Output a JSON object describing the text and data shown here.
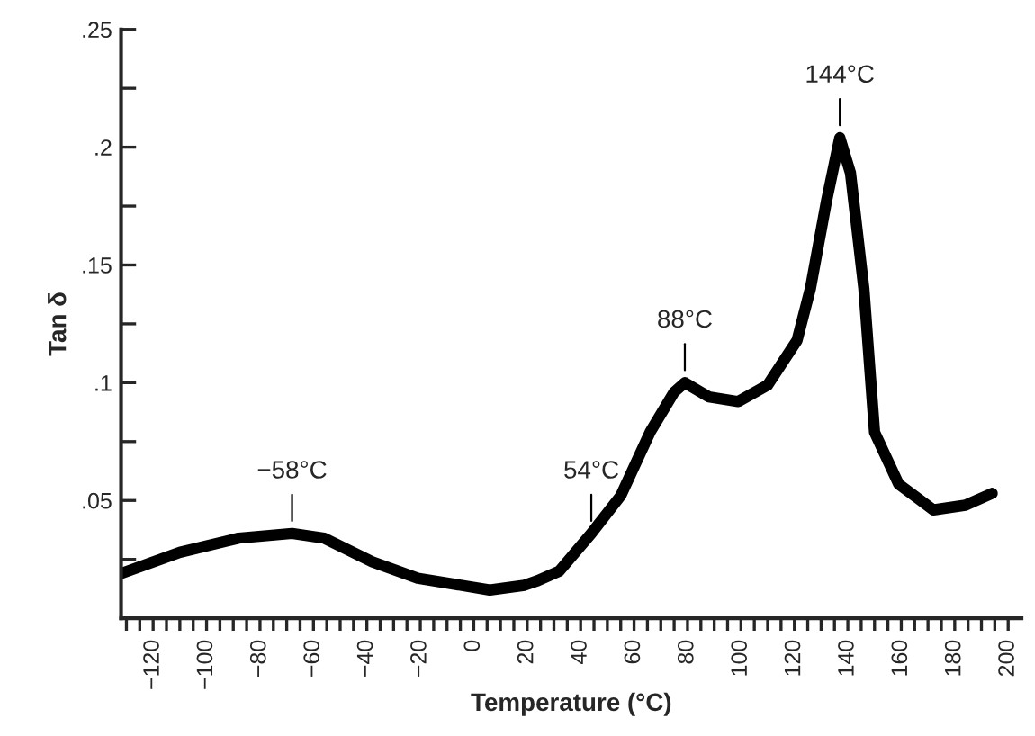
{
  "chart_data": {
    "type": "line",
    "xlabel": "Temperature (°C)",
    "ylabel": "Tan δ",
    "xlim": [
      -132,
      205
    ],
    "ylim": [
      0,
      0.25
    ],
    "xticks": [
      {
        "value": -130,
        "label": null
      },
      {
        "value": -125,
        "label": null
      },
      {
        "value": -120,
        "label": "−120"
      },
      {
        "value": -115,
        "label": null
      },
      {
        "value": -110,
        "label": null
      },
      {
        "value": -105,
        "label": null
      },
      {
        "value": -100,
        "label": "−100"
      },
      {
        "value": -95,
        "label": null
      },
      {
        "value": -90,
        "label": null
      },
      {
        "value": -85,
        "label": null
      },
      {
        "value": -80,
        "label": "−80"
      },
      {
        "value": -75,
        "label": null
      },
      {
        "value": -70,
        "label": null
      },
      {
        "value": -65,
        "label": null
      },
      {
        "value": -60,
        "label": "−60"
      },
      {
        "value": -55,
        "label": null
      },
      {
        "value": -50,
        "label": null
      },
      {
        "value": -45,
        "label": null
      },
      {
        "value": -40,
        "label": "−40"
      },
      {
        "value": -35,
        "label": null
      },
      {
        "value": -30,
        "label": null
      },
      {
        "value": -25,
        "label": null
      },
      {
        "value": -20,
        "label": "−20"
      },
      {
        "value": -15,
        "label": null
      },
      {
        "value": -10,
        "label": null
      },
      {
        "value": -5,
        "label": null
      },
      {
        "value": 0,
        "label": "0"
      },
      {
        "value": 5,
        "label": null
      },
      {
        "value": 10,
        "label": null
      },
      {
        "value": 15,
        "label": null
      },
      {
        "value": 20,
        "label": "20"
      },
      {
        "value": 25,
        "label": null
      },
      {
        "value": 30,
        "label": null
      },
      {
        "value": 35,
        "label": null
      },
      {
        "value": 40,
        "label": "40"
      },
      {
        "value": 45,
        "label": null
      },
      {
        "value": 50,
        "label": null
      },
      {
        "value": 55,
        "label": null
      },
      {
        "value": 60,
        "label": "60"
      },
      {
        "value": 65,
        "label": null
      },
      {
        "value": 70,
        "label": null
      },
      {
        "value": 75,
        "label": null
      },
      {
        "value": 80,
        "label": "80"
      },
      {
        "value": 85,
        "label": null
      },
      {
        "value": 90,
        "label": null
      },
      {
        "value": 95,
        "label": null
      },
      {
        "value": 100,
        "label": "100"
      },
      {
        "value": 105,
        "label": null
      },
      {
        "value": 110,
        "label": null
      },
      {
        "value": 115,
        "label": null
      },
      {
        "value": 120,
        "label": "120"
      },
      {
        "value": 125,
        "label": null
      },
      {
        "value": 130,
        "label": null
      },
      {
        "value": 135,
        "label": null
      },
      {
        "value": 140,
        "label": "140"
      },
      {
        "value": 145,
        "label": null
      },
      {
        "value": 150,
        "label": null
      },
      {
        "value": 155,
        "label": null
      },
      {
        "value": 160,
        "label": "160"
      },
      {
        "value": 165,
        "label": null
      },
      {
        "value": 170,
        "label": null
      },
      {
        "value": 175,
        "label": null
      },
      {
        "value": 180,
        "label": "180"
      },
      {
        "value": 185,
        "label": null
      },
      {
        "value": 190,
        "label": null
      },
      {
        "value": 195,
        "label": null
      },
      {
        "value": 200,
        "label": "200"
      }
    ],
    "yticks": [
      {
        "value": 0.025,
        "label": null
      },
      {
        "value": 0.05,
        "label": ".05"
      },
      {
        "value": 0.075,
        "label": null
      },
      {
        "value": 0.1,
        "label": ".1"
      },
      {
        "value": 0.125,
        "label": null
      },
      {
        "value": 0.15,
        "label": ".15"
      },
      {
        "value": 0.175,
        "label": null
      },
      {
        "value": 0.2,
        "label": ".2"
      },
      {
        "value": 0.225,
        "label": null
      },
      {
        "value": 0.25,
        "label": ".25"
      }
    ],
    "grid": false,
    "legend": false,
    "marker": "none",
    "line_style": "solid",
    "series": [
      {
        "color": "#000000",
        "x": [
          -132,
          -110,
          -88,
          -68,
          -56,
          -38,
          -21,
          6,
          19,
          24,
          32,
          44,
          55,
          66,
          75,
          79,
          88,
          99,
          110,
          121,
          126,
          132,
          137,
          141,
          146,
          150,
          159,
          172,
          184,
          194
        ],
        "values": [
          0.019,
          0.028,
          0.034,
          0.036,
          0.034,
          0.024,
          0.017,
          0.012,
          0.014,
          0.016,
          0.02,
          0.036,
          0.052,
          0.079,
          0.096,
          0.1,
          0.094,
          0.092,
          0.099,
          0.118,
          0.14,
          0.177,
          0.204,
          0.189,
          0.14,
          0.079,
          0.057,
          0.046,
          0.048,
          0.053
        ]
      }
    ],
    "annotations": [
      {
        "text": "−58°C",
        "x": -68,
        "y": 0.036
      },
      {
        "text": "54°C",
        "x": 44,
        "y": 0.036
      },
      {
        "text": "88°C",
        "x": 79,
        "y": 0.1
      },
      {
        "text": "144°C",
        "x": 137,
        "y": 0.204
      }
    ]
  }
}
